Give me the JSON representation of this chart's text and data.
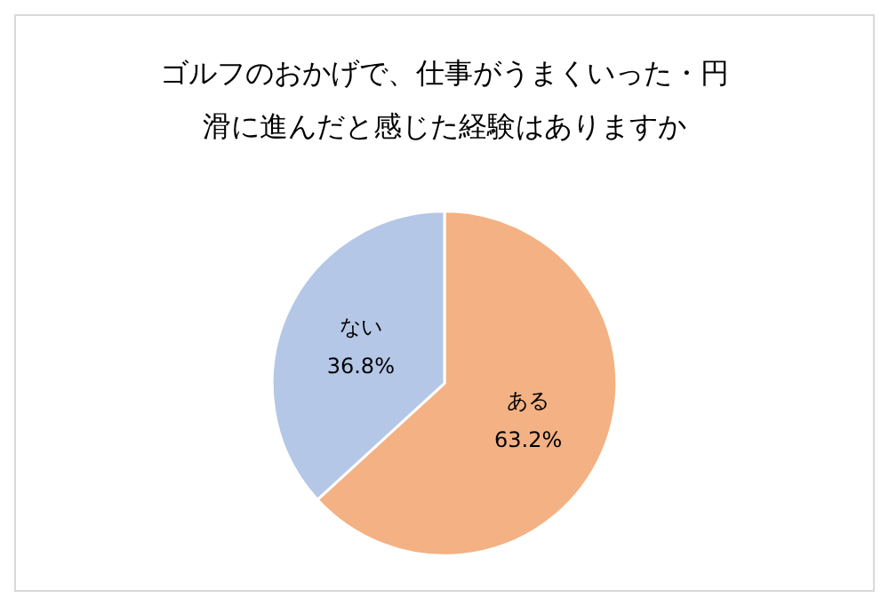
{
  "chart_data": {
    "type": "pie",
    "title": "ゴルフのおかげで、仕事がうまくいった・円滑に進んだと感じた経験はありますか",
    "categories": [
      "ある",
      "ない"
    ],
    "values": [
      63.2,
      36.8
    ],
    "value_labels": [
      "63.2%",
      "36.8%"
    ],
    "colors": [
      "#f4b183",
      "#b4c7e7"
    ]
  }
}
